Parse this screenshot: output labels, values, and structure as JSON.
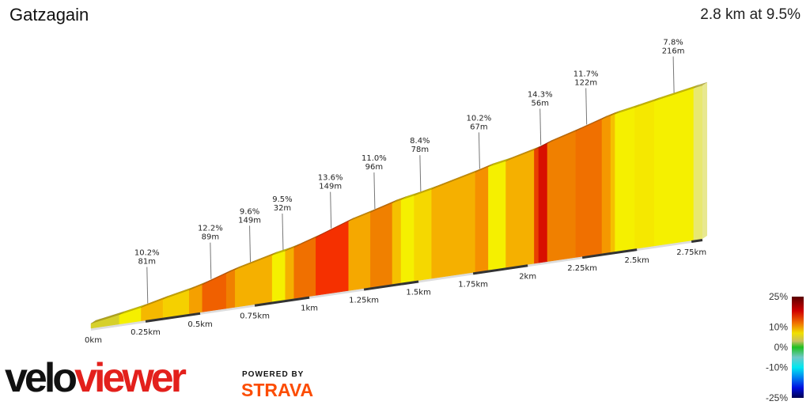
{
  "header": {
    "title": "Gatzagain",
    "summary": "2.8 km at 9.5%"
  },
  "chart_data": {
    "type": "area",
    "title": "Gatzagain",
    "total_distance_km": 2.8,
    "average_gradient_pct": 9.5,
    "segments": [
      {
        "start": 0.0,
        "end": 0.13,
        "gradient": 6.5,
        "color": "#d6d02a"
      },
      {
        "start": 0.13,
        "end": 0.23,
        "gradient": 7.0,
        "color": "#f5f000"
      },
      {
        "start": 0.23,
        "end": 0.33,
        "gradient": 9.0,
        "color": "#f5b800"
      },
      {
        "start": 0.33,
        "end": 0.45,
        "gradient": 8.0,
        "color": "#f5d000"
      },
      {
        "start": 0.45,
        "end": 0.51,
        "gradient": 10.0,
        "color": "#f5a000"
      },
      {
        "start": 0.51,
        "end": 0.62,
        "gradient": 12.5,
        "color": "#f06000"
      },
      {
        "start": 0.62,
        "end": 0.66,
        "gradient": 11.0,
        "color": "#f08000"
      },
      {
        "start": 0.66,
        "end": 0.83,
        "gradient": 9.5,
        "color": "#f5b000"
      },
      {
        "start": 0.83,
        "end": 0.89,
        "gradient": 7.0,
        "color": "#f5f000"
      },
      {
        "start": 0.89,
        "end": 0.93,
        "gradient": 9.5,
        "color": "#f5b000"
      },
      {
        "start": 0.93,
        "end": 1.03,
        "gradient": 12.0,
        "color": "#f07000"
      },
      {
        "start": 1.03,
        "end": 1.18,
        "gradient": 13.6,
        "color": "#f53000"
      },
      {
        "start": 1.18,
        "end": 1.28,
        "gradient": 10.0,
        "color": "#f5a800"
      },
      {
        "start": 1.28,
        "end": 1.38,
        "gradient": 11.0,
        "color": "#f08000"
      },
      {
        "start": 1.38,
        "end": 1.42,
        "gradient": 8.5,
        "color": "#f5c000"
      },
      {
        "start": 1.42,
        "end": 1.48,
        "gradient": 7.0,
        "color": "#f5f000"
      },
      {
        "start": 1.48,
        "end": 1.56,
        "gradient": 8.0,
        "color": "#f5d800"
      },
      {
        "start": 1.56,
        "end": 1.76,
        "gradient": 9.5,
        "color": "#f5b000"
      },
      {
        "start": 1.76,
        "end": 1.82,
        "gradient": 10.5,
        "color": "#f59000"
      },
      {
        "start": 1.82,
        "end": 1.9,
        "gradient": 7.0,
        "color": "#f5f000"
      },
      {
        "start": 1.9,
        "end": 2.03,
        "gradient": 9.5,
        "color": "#f5b000"
      },
      {
        "start": 2.03,
        "end": 2.05,
        "gradient": 13.0,
        "color": "#e84000"
      },
      {
        "start": 2.05,
        "end": 2.09,
        "gradient": 14.3,
        "color": "#d81000"
      },
      {
        "start": 2.09,
        "end": 2.22,
        "gradient": 11.0,
        "color": "#f08000"
      },
      {
        "start": 2.22,
        "end": 2.34,
        "gradient": 12.0,
        "color": "#f07000"
      },
      {
        "start": 2.34,
        "end": 2.38,
        "gradient": 10.0,
        "color": "#f59800"
      },
      {
        "start": 2.38,
        "end": 2.4,
        "gradient": 8.5,
        "color": "#f5c000"
      },
      {
        "start": 2.4,
        "end": 2.49,
        "gradient": 7.0,
        "color": "#f5f000"
      },
      {
        "start": 2.49,
        "end": 2.58,
        "gradient": 7.5,
        "color": "#f5e800"
      },
      {
        "start": 2.58,
        "end": 2.76,
        "gradient": 7.0,
        "color": "#f5f000"
      },
      {
        "start": 2.76,
        "end": 2.8,
        "gradient": 6.0,
        "color": "#e8e870"
      }
    ],
    "callouts": [
      {
        "km": 0.26,
        "gradient": "10.2%",
        "length": "81m"
      },
      {
        "km": 0.55,
        "gradient": "12.2%",
        "length": "89m"
      },
      {
        "km": 0.73,
        "gradient": "9.6%",
        "length": "149m"
      },
      {
        "km": 0.88,
        "gradient": "9.5%",
        "length": "32m"
      },
      {
        "km": 1.1,
        "gradient": "13.6%",
        "length": "149m"
      },
      {
        "km": 1.3,
        "gradient": "11.0%",
        "length": "96m"
      },
      {
        "km": 1.51,
        "gradient": "8.4%",
        "length": "78m"
      },
      {
        "km": 1.78,
        "gradient": "10.2%",
        "length": "67m"
      },
      {
        "km": 2.06,
        "gradient": "14.3%",
        "length": "56m"
      },
      {
        "km": 2.27,
        "gradient": "11.7%",
        "length": "122m"
      },
      {
        "km": 2.67,
        "gradient": "7.8%",
        "length": "216m"
      }
    ],
    "xticks": [
      {
        "km": 0,
        "label": "0km"
      },
      {
        "km": 0.25,
        "label": "0.25km"
      },
      {
        "km": 0.5,
        "label": "0.5km"
      },
      {
        "km": 0.75,
        "label": "0.75km"
      },
      {
        "km": 1,
        "label": "1km"
      },
      {
        "km": 1.25,
        "label": "1.25km"
      },
      {
        "km": 1.5,
        "label": "1.5km"
      },
      {
        "km": 1.75,
        "label": "1.75km"
      },
      {
        "km": 2,
        "label": "2km"
      },
      {
        "km": 2.25,
        "label": "2.25km"
      },
      {
        "km": 2.5,
        "label": "2.5km"
      },
      {
        "km": 2.75,
        "label": "2.75km"
      }
    ],
    "color_scale": {
      "labels": [
        "25%",
        "10%",
        "0%",
        "-10%",
        "-25%"
      ],
      "stops": [
        {
          "value": 25,
          "color": "#5a0000"
        },
        {
          "value": 18,
          "color": "#d00000"
        },
        {
          "value": 12,
          "color": "#f07000"
        },
        {
          "value": 7,
          "color": "#f0e000"
        },
        {
          "value": 3,
          "color": "#c8c060"
        },
        {
          "value": 0,
          "color": "#20c020"
        },
        {
          "value": -5,
          "color": "#70c8c8"
        },
        {
          "value": -10,
          "color": "#00e8f0"
        },
        {
          "value": -15,
          "color": "#0080f0"
        },
        {
          "value": -20,
          "color": "#0010e0"
        },
        {
          "value": -25,
          "color": "#000050"
        }
      ]
    }
  },
  "branding": {
    "logo_text_1": "velo",
    "logo_text_2": "viewer",
    "powered_by": "POWERED BY",
    "strava": "STRAVA"
  }
}
